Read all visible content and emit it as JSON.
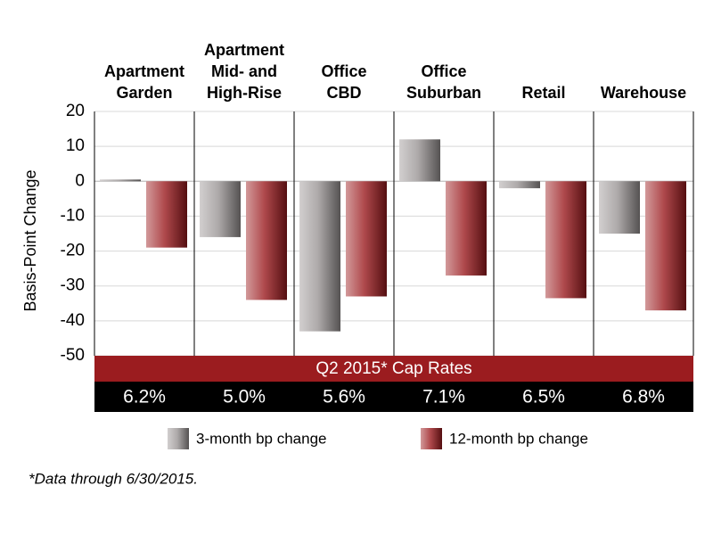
{
  "chart_data": {
    "type": "bar",
    "categories": [
      [
        "Apartment",
        "Garden"
      ],
      [
        "Apartment",
        "Mid- and",
        "High-Rise"
      ],
      [
        "Office",
        "CBD"
      ],
      [
        "Office",
        "Suburban"
      ],
      [
        "Retail"
      ],
      [
        "Warehouse"
      ]
    ],
    "series": [
      {
        "name": "3-month bp change",
        "color": "#9a9595",
        "values": [
          0.5,
          -16,
          -43,
          12,
          -2,
          -15
        ]
      },
      {
        "name": "12-month bp change",
        "color": "#9b1c1f",
        "values": [
          -19,
          -34,
          -33,
          -27,
          -33.5,
          -37
        ]
      }
    ],
    "y_label": "Basis-Point Change",
    "ylim": [
      -50,
      20
    ],
    "yticks": [
      -50,
      -40,
      -30,
      -20,
      -10,
      0,
      10,
      20
    ],
    "grid": true,
    "cap_rates_title": "Q2 2015* Cap Rates",
    "cap_rates": [
      "6.2%",
      "5.0%",
      "5.6%",
      "7.1%",
      "6.5%",
      "6.8%"
    ],
    "footnote": "*Data through 6/30/2015."
  }
}
